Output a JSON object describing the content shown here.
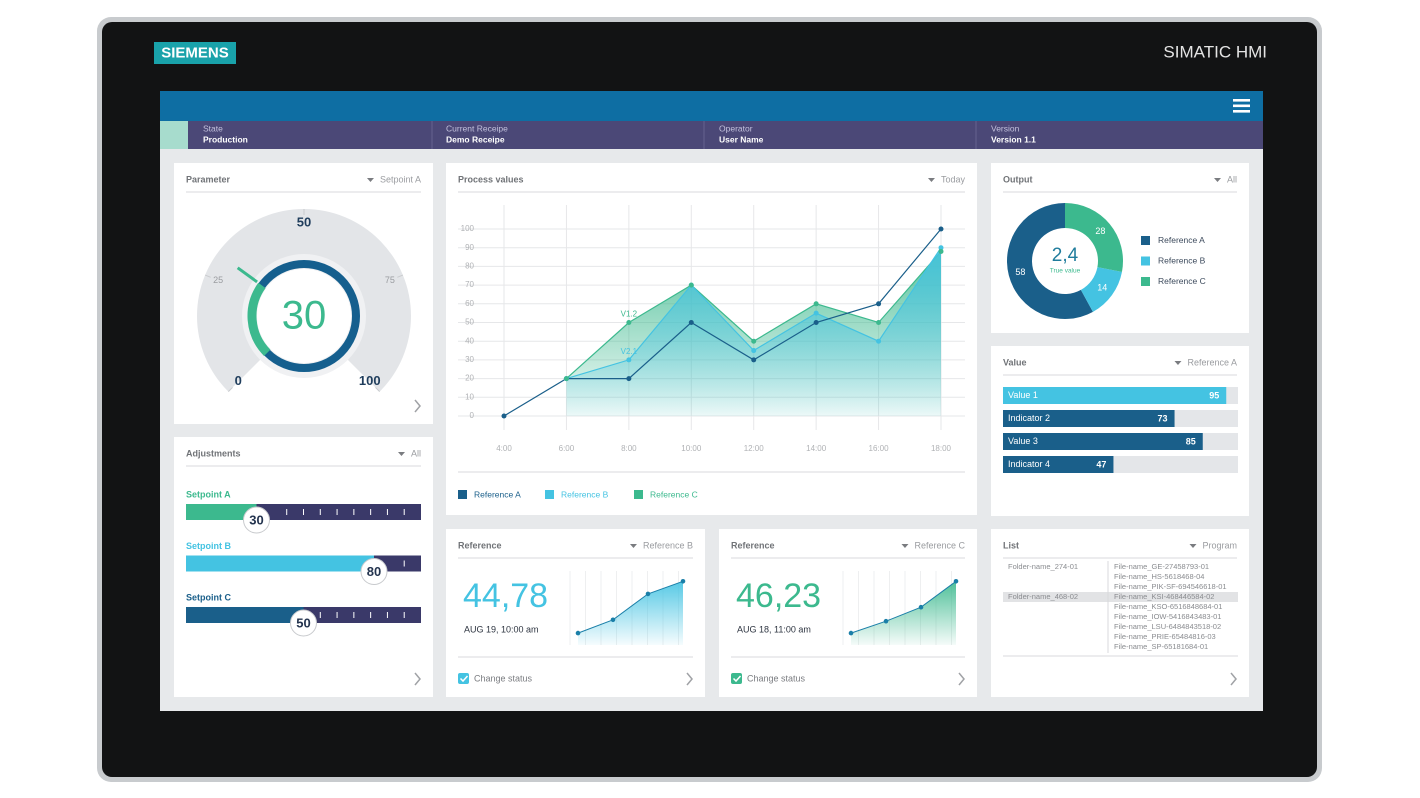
{
  "device": {
    "brand": "SIEMENS",
    "model": "SIMATIC HMI"
  },
  "status_bar": [
    {
      "label": "State",
      "value": "Production"
    },
    {
      "label": "Current Receipe",
      "value": "Demo Receipe"
    },
    {
      "label": "Operator",
      "value": "User Name"
    },
    {
      "label": "Version",
      "value": "Version 1.1"
    }
  ],
  "parameter": {
    "title": "Parameter",
    "filter": "Setpoint A",
    "gauge": {
      "value": 30,
      "range": [
        0,
        100
      ],
      "ticks": [
        0,
        25,
        50,
        75,
        100
      ],
      "color": "#3cb98e"
    }
  },
  "adjustments": {
    "title": "Adjustments",
    "filter": "All",
    "range": [
      0,
      100
    ],
    "sliders": [
      {
        "label": "Setpoint A",
        "value": 30,
        "color": "#3cb98e"
      },
      {
        "label": "Setpoint B",
        "value": 80,
        "color": "#44c3e2"
      },
      {
        "label": "Setpoint C",
        "value": 50,
        "color": "#1a5f8a"
      }
    ]
  },
  "chart_data": [
    {
      "type": "area",
      "title": "Process values",
      "filter": "Today",
      "categories": [
        "4:00",
        "6:00",
        "8:00",
        "10:00",
        "12:00",
        "14:00",
        "16:00",
        "18:00"
      ],
      "series": [
        {
          "name": "Reference A",
          "color": "#1a5f8a",
          "fill": false,
          "values": [
            0,
            20,
            20,
            50,
            30,
            50,
            60,
            100
          ]
        },
        {
          "name": "Reference B",
          "color": "#44c3e2",
          "fill": true,
          "values": [
            null,
            20,
            30,
            70,
            35,
            55,
            40,
            90
          ],
          "point_notes": [
            null,
            null,
            "V2.1",
            null,
            null,
            null,
            null,
            null
          ]
        },
        {
          "name": "Reference C",
          "color": "#3cb98e",
          "fill": true,
          "values": [
            null,
            20,
            50,
            70,
            40,
            60,
            50,
            88
          ],
          "point_notes": [
            null,
            null,
            "V1.2",
            null,
            null,
            null,
            null,
            null
          ]
        }
      ],
      "ylim": [
        0,
        100
      ],
      "yticks": [
        0,
        10,
        20,
        30,
        40,
        50,
        60,
        70,
        80,
        90,
        100
      ],
      "grid": true
    },
    {
      "type": "donut",
      "title": "Output",
      "filter": "All",
      "center_value": "2,4",
      "center_label": "True value",
      "categories": [
        "Reference A",
        "Reference B",
        "Reference C"
      ],
      "values": [
        58,
        14,
        28
      ],
      "colors": [
        "#1a5f8a",
        "#44c3e2",
        "#3cb98e"
      ]
    },
    {
      "type": "hbar",
      "title": "Value",
      "filter": "Reference A",
      "categories": [
        "Value 1",
        "Indicator 2",
        "Value 3",
        "Indicator 4"
      ],
      "values": [
        95,
        73,
        85,
        47
      ],
      "colors": [
        "#44c3e2",
        "#1a5f8a",
        "#1a5f8a",
        "#1a5f8a"
      ],
      "xlim": [
        0,
        100
      ]
    },
    {
      "type": "sparkline",
      "title": "Reference",
      "filter": "Reference B",
      "current": "44,78",
      "timestamp": "AUG 19, 10:00 am",
      "checkbox": "Change status",
      "color": "#44c3e2",
      "values": [
        17,
        36,
        73,
        91
      ],
      "ylim": [
        0,
        100
      ]
    },
    {
      "type": "sparkline",
      "title": "Reference",
      "filter": "Reference C",
      "current": "46,23",
      "timestamp": "AUG 18, 11:00 am",
      "checkbox": "Change status",
      "color": "#3cb98e",
      "values": [
        17,
        34,
        54,
        91
      ],
      "ylim": [
        0,
        100
      ]
    }
  ],
  "list": {
    "title": "List",
    "filter": "Program",
    "folders": [
      "Folder-name_274-01",
      "Folder-name_468-02"
    ],
    "files": [
      "File-name_GE-27458793-01",
      "File-name_HS-5618468-04",
      "File-name_PIK-SF-694546618-01",
      "File-name_KSI-468446584-02",
      "File-name_KSO-6516848684-01",
      "File-name_IOW-5416843483-01",
      "File-name_LSU-6484843518-02",
      "File-name_PRIE-65484816-03",
      "File-name_SP-65181684-01"
    ]
  }
}
